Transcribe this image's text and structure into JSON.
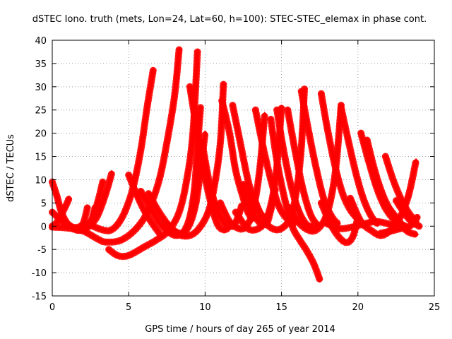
{
  "chart_data": {
    "type": "scatter",
    "title": "dSTEC Iono. truth (mets, Lon=24, Lat=60, h=100): STEC-STEC_elemax in phase cont.",
    "xlabel": "GPS time / hours of day 265 of year 2014",
    "ylabel": "dSTEC  / TECUs",
    "xlim": [
      0,
      25
    ],
    "ylim": [
      -15,
      40
    ],
    "xticks": [
      0,
      5,
      10,
      15,
      20,
      25
    ],
    "yticks": [
      -15,
      -10,
      -5,
      0,
      5,
      10,
      15,
      20,
      25,
      30,
      35,
      40
    ],
    "grid": true,
    "legend": "none",
    "marker": "+",
    "color": "#ff0000",
    "series": [
      {
        "x": [
          0.0,
          0.3,
          0.6,
          1.0,
          1.4,
          1.8,
          2.2,
          2.6,
          3.0,
          3.3
        ],
        "y": [
          9.5,
          6.5,
          3.0,
          0.5,
          -0.6,
          -0.9,
          -0.5,
          1.5,
          5.5,
          9.5
        ]
      },
      {
        "x": [
          0.0,
          0.3,
          0.6,
          0.9,
          1.1
        ],
        "y": [
          0.0,
          0.8,
          2.5,
          4.5,
          6.0
        ]
      },
      {
        "x": [
          0.0,
          0.5,
          1.0,
          1.5,
          2.0,
          2.3
        ],
        "y": [
          3.0,
          1.5,
          0.2,
          -0.3,
          0.5,
          4.0
        ]
      },
      {
        "x": [
          0.5,
          1.0,
          1.5,
          2.0,
          2.5,
          2.8
        ],
        "y": [
          2.0,
          0.5,
          -0.5,
          -0.8,
          0.5,
          4.0
        ]
      },
      {
        "x": [
          2.3,
          2.8,
          3.3,
          3.8,
          4.3,
          4.8,
          5.3,
          5.8,
          6.2,
          6.6
        ],
        "y": [
          0.5,
          -0.2,
          -0.8,
          -0.9,
          0.5,
          3.5,
          8.5,
          16.5,
          25.5,
          33.5
        ]
      },
      {
        "x": [
          2.6,
          3.0,
          3.5,
          3.9
        ],
        "y": [
          0.5,
          2.5,
          7.0,
          11.5
        ]
      },
      {
        "x": [
          0.0,
          1.0,
          2.0,
          3.0,
          3.5,
          4.5,
          5.5,
          6.3,
          7.0,
          7.5,
          8.0,
          8.3
        ],
        "y": [
          -0.2,
          -0.4,
          -1.0,
          -2.8,
          -3.4,
          -3.0,
          -0.5,
          3.5,
          10.0,
          18.0,
          28.0,
          38.0
        ]
      },
      {
        "x": [
          3.7,
          4.2,
          4.7,
          5.2,
          6.0,
          6.8,
          7.6,
          8.3,
          8.8,
          9.2,
          9.5
        ],
        "y": [
          -5.0,
          -6.2,
          -6.5,
          -6.0,
          -4.5,
          -3.0,
          -1.0,
          3.0,
          10.0,
          20.0,
          37.5
        ]
      },
      {
        "x": [
          5.8,
          6.4,
          7.0,
          7.6,
          8.1,
          8.6,
          9.0,
          9.3,
          9.5,
          9.7
        ],
        "y": [
          7.5,
          4.0,
          0.8,
          -1.2,
          -2.0,
          -1.2,
          2.0,
          8.0,
          17.0,
          25.5
        ]
      },
      {
        "x": [
          5.0,
          5.5,
          6.0,
          6.5,
          7.0
        ],
        "y": [
          11.0,
          7.0,
          3.5,
          0.8,
          -1.5
        ]
      },
      {
        "x": [
          6.3,
          7.0,
          7.8,
          8.5,
          9.0,
          9.4,
          9.7,
          10.0
        ],
        "y": [
          7.0,
          3.0,
          -0.5,
          -1.5,
          0.5,
          5.0,
          12.0,
          20.0
        ]
      },
      {
        "x": [
          9.0,
          9.8,
          10.3,
          10.8,
          11.3,
          11.7
        ],
        "y": [
          30.0,
          14.0,
          6.0,
          0.5,
          -0.8,
          0.5
        ]
      },
      {
        "x": [
          7.5,
          8.3,
          9.0,
          9.6,
          10.2,
          10.6,
          11.0,
          11.2
        ],
        "y": [
          0.5,
          -1.8,
          -2.0,
          -0.5,
          3.0,
          8.5,
          18.0,
          30.5
        ]
      },
      {
        "x": [
          9.8,
          10.3,
          10.8,
          11.3,
          11.8,
          12.1,
          12.4
        ],
        "y": [
          18.0,
          9.0,
          3.5,
          0.5,
          0.0,
          1.5,
          4.5
        ]
      },
      {
        "x": [
          11.1,
          11.6,
          12.0,
          12.5,
          12.8,
          13.1
        ],
        "y": [
          27.0,
          20.0,
          12.0,
          6.0,
          3.0,
          1.5
        ]
      },
      {
        "x": [
          11.8,
          12.3,
          12.8,
          13.3,
          13.8
        ],
        "y": [
          26.0,
          18.0,
          10.0,
          4.5,
          2.0
        ]
      },
      {
        "x": [
          11.0,
          11.6,
          12.2,
          12.6,
          13.0,
          13.3,
          13.6,
          13.9
        ],
        "y": [
          5.0,
          1.0,
          -0.5,
          -0.3,
          1.8,
          6.0,
          13.0,
          24.0
        ]
      },
      {
        "x": [
          12.5,
          13.0,
          13.5,
          14.0,
          14.3,
          14.6
        ],
        "y": [
          9.0,
          4.0,
          1.0,
          0.5,
          3.5,
          8.0
        ]
      },
      {
        "x": [
          13.3,
          13.8,
          14.3,
          14.8,
          15.3,
          15.8
        ],
        "y": [
          25.0,
          17.0,
          10.0,
          4.5,
          1.8,
          0.5
        ]
      },
      {
        "x": [
          14.3,
          14.7,
          15.2,
          15.7,
          16.2,
          16.6,
          17.1,
          17.5
        ],
        "y": [
          23.0,
          14.0,
          6.0,
          0.0,
          -3.0,
          -5.0,
          -8.0,
          -11.5
        ]
      },
      {
        "x": [
          12.0,
          12.8,
          13.5,
          14.0,
          14.4,
          14.7,
          15.0
        ],
        "y": [
          3.0,
          -0.5,
          -0.5,
          1.5,
          6.0,
          13.0,
          25.5
        ]
      },
      {
        "x": [
          14.7,
          15.1,
          15.6,
          16.1,
          16.6,
          17.0
        ],
        "y": [
          25.0,
          17.0,
          9.0,
          3.5,
          0.5,
          0.0
        ]
      },
      {
        "x": [
          15.4,
          15.9,
          16.4,
          16.9,
          17.4
        ],
        "y": [
          25.0,
          16.0,
          8.0,
          2.5,
          0.0
        ]
      },
      {
        "x": [
          13.2,
          13.8,
          14.4,
          15.0,
          15.6,
          16.0,
          16.3,
          16.5
        ],
        "y": [
          6.0,
          1.5,
          -0.5,
          -0.5,
          2.0,
          8.0,
          17.0,
          29.5
        ]
      },
      {
        "x": [
          16.3,
          16.8,
          17.3,
          17.8,
          18.3,
          18.7
        ],
        "y": [
          29.0,
          20.0,
          12.0,
          5.5,
          2.0,
          0.5
        ]
      },
      {
        "x": [
          17.6,
          18.0,
          18.5,
          19.0,
          19.5,
          20.0
        ],
        "y": [
          28.5,
          21.0,
          13.0,
          7.0,
          3.5,
          1.5
        ]
      },
      {
        "x": [
          15.5,
          16.2,
          16.9,
          17.4,
          17.9,
          18.3,
          18.6,
          18.9
        ],
        "y": [
          4.0,
          0.5,
          -1.0,
          -0.5,
          2.0,
          7.0,
          14.0,
          26.0
        ]
      },
      {
        "x": [
          18.9,
          19.4,
          19.9,
          20.4,
          20.9,
          21.3
        ],
        "y": [
          25.5,
          18.0,
          11.0,
          5.5,
          2.0,
          0.5
        ]
      },
      {
        "x": [
          17.6,
          18.2,
          18.8,
          19.3,
          19.7,
          20.0
        ],
        "y": [
          5.0,
          0.5,
          -2.5,
          -3.5,
          -2.0,
          2.0
        ]
      },
      {
        "x": [
          18.0,
          18.8,
          19.6,
          20.4,
          21.2,
          22.0,
          22.5
        ],
        "y": [
          0.5,
          -0.5,
          -0.2,
          0.5,
          1.0,
          0.5,
          0.0
        ]
      },
      {
        "x": [
          20.2,
          20.7,
          21.2,
          21.7,
          22.2,
          22.7,
          23.2
        ],
        "y": [
          20.0,
          14.0,
          8.5,
          4.5,
          2.0,
          0.5,
          -0.5
        ]
      },
      {
        "x": [
          20.6,
          21.1,
          21.6,
          22.1,
          22.6,
          23.1
        ],
        "y": [
          18.5,
          12.0,
          7.0,
          3.5,
          1.0,
          0.0
        ]
      },
      {
        "x": [
          21.8,
          22.3,
          22.8,
          23.3,
          23.8
        ],
        "y": [
          15.0,
          10.0,
          6.0,
          3.0,
          1.0
        ]
      },
      {
        "x": [
          19.5,
          20.2,
          20.9,
          21.5,
          22.1,
          22.7,
          23.3,
          23.8
        ],
        "y": [
          6.0,
          1.0,
          -1.0,
          -2.0,
          -1.0,
          1.5,
          6.5,
          14.0
        ]
      },
      {
        "x": [
          21.5,
          22.2,
          22.8,
          23.4,
          23.9
        ],
        "y": [
          -1.5,
          -1.0,
          -0.5,
          0.0,
          2.0
        ]
      },
      {
        "x": [
          22.0,
          22.6,
          23.2,
          23.8
        ],
        "y": [
          4.0,
          1.5,
          -1.0,
          -1.8
        ]
      },
      {
        "x": [
          22.5,
          23.0,
          23.5,
          24.0
        ],
        "y": [
          5.5,
          3.0,
          1.0,
          0.0
        ]
      }
    ]
  }
}
